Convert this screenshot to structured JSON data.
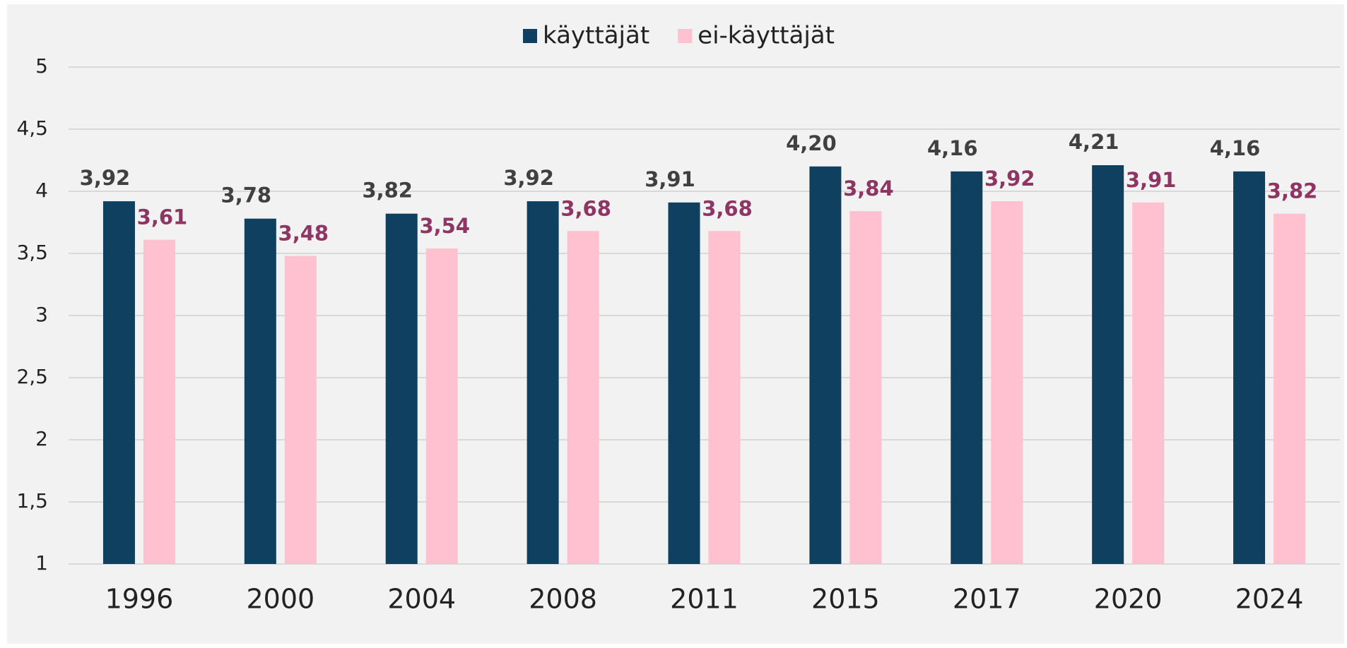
{
  "chart_data": {
    "type": "bar",
    "categories": [
      "1996",
      "2000",
      "2004",
      "2008",
      "2011",
      "2015",
      "2017",
      "2020",
      "2024"
    ],
    "series": [
      {
        "name": "käyttäjät",
        "color": "#0f4060",
        "label_color": "#404040",
        "values": [
          3.92,
          3.78,
          3.82,
          3.92,
          3.91,
          4.2,
          4.16,
          4.21,
          4.16
        ],
        "value_labels": [
          "3,92",
          "3,78",
          "3,82",
          "3,92",
          "3,91",
          "4,20",
          "4,16",
          "4,21",
          "4,16"
        ]
      },
      {
        "name": "ei-käyttäjät",
        "color": "#ffc0cf",
        "label_color": "#8e3563",
        "values": [
          3.61,
          3.48,
          3.54,
          3.68,
          3.68,
          3.84,
          3.92,
          3.91,
          3.82
        ],
        "value_labels": [
          "3,61",
          "3,48",
          "3,54",
          "3,68",
          "3,68",
          "3,84",
          "3,92",
          "3,91",
          "3,82"
        ]
      }
    ],
    "ylim": [
      1,
      5
    ],
    "yticks": [
      1,
      {
        "value": 1.5,
        "label": "1,5"
      },
      2,
      {
        "value": 2.5,
        "label": "2,5"
      },
      3,
      {
        "value": 3.5,
        "label": "3,5"
      },
      4,
      {
        "value": 4.5,
        "label": "4,5"
      },
      5
    ],
    "grid": true,
    "legend": "top"
  }
}
